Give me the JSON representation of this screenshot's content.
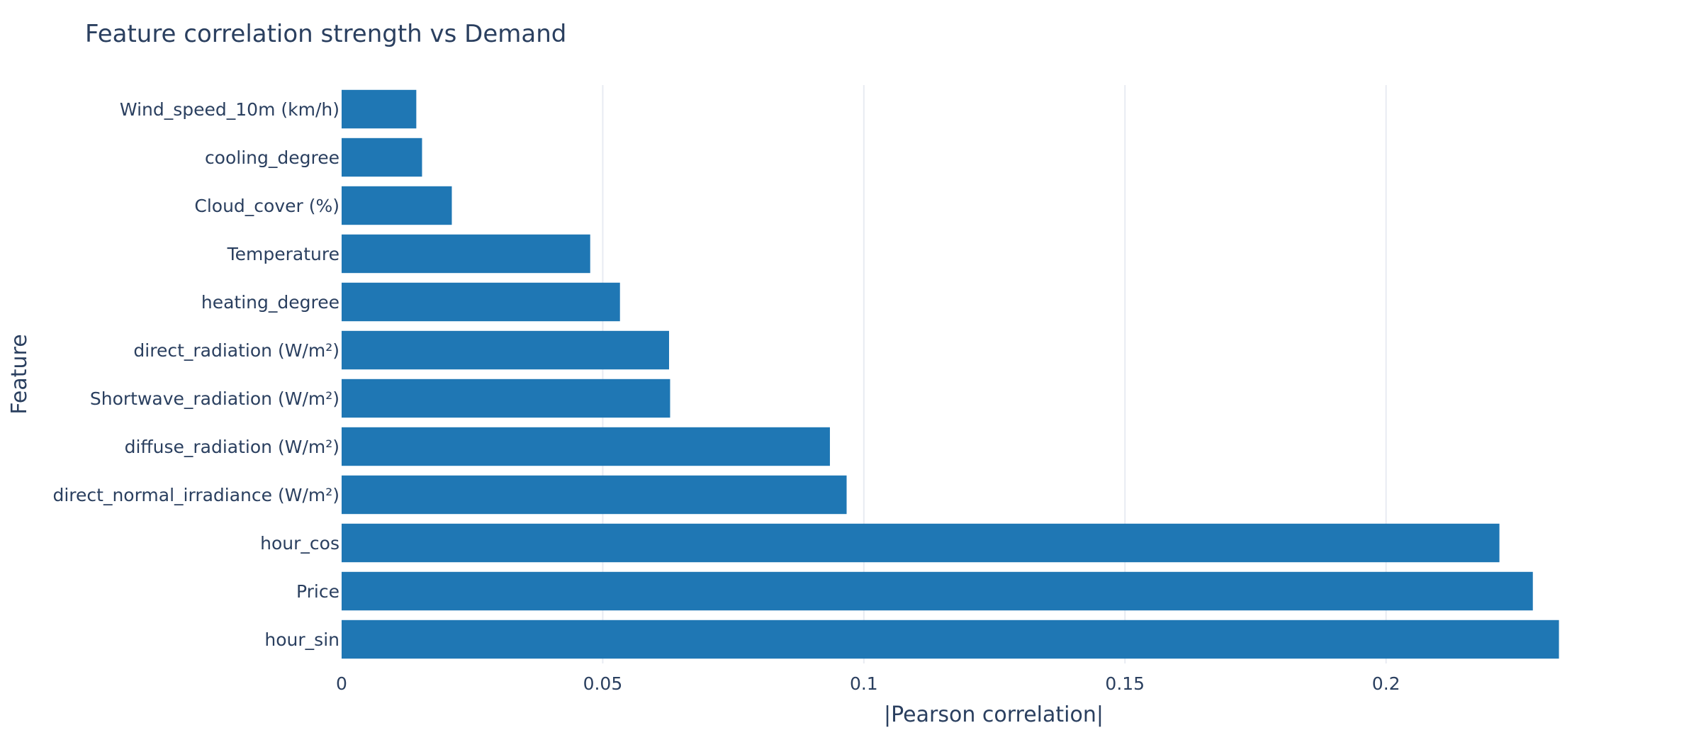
{
  "chart_data": {
    "type": "bar",
    "orientation": "horizontal",
    "title": "Feature correlation strength vs Demand",
    "xlabel": "|Pearson correlation|",
    "ylabel": "Feature",
    "xlim": [
      0,
      0.2375
    ],
    "xticks": [
      0,
      0.05,
      0.1,
      0.15,
      0.2
    ],
    "xtick_labels": [
      "0",
      "0.05",
      "0.1",
      "0.15",
      "0.2"
    ],
    "grid": "vertical",
    "legend": "none",
    "bar_color": "#1f77b4",
    "categories": [
      "Wind_speed_10m (km/h)",
      "cooling_degree",
      "Cloud_cover (%)",
      "Temperature",
      "heating_degree",
      "direct_radiation (W/m²)",
      "Shortwave_radiation (W/m²)",
      "diffuse_radiation (W/m²)",
      "direct_normal_irradiance (W/m²)",
      "hour_cos",
      "Price",
      "hour_sin"
    ],
    "values": [
      0.0143,
      0.0154,
      0.0211,
      0.0476,
      0.0533,
      0.0627,
      0.0629,
      0.0935,
      0.0967,
      0.2217,
      0.2281,
      0.2331
    ]
  }
}
